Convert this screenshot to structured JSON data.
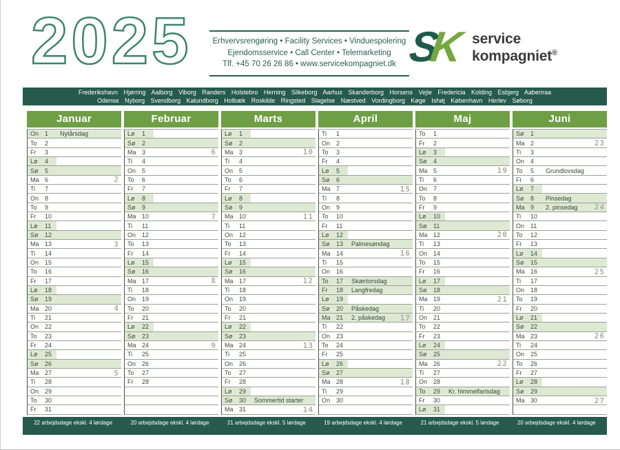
{
  "year": "2025",
  "services": {
    "line1": "Erhvervsrengøring • Facility Services • Vinduespolering",
    "line2": "Ejendomsservice • Call Center • Telemarketing",
    "line3": "Tlf. +45 70 26 26 86 • www.servicekompagniet.dk"
  },
  "logo": {
    "s": "S",
    "k": "K",
    "name1": "service",
    "name2": "kompagniet",
    "registered": "®"
  },
  "cities": {
    "line1": [
      "Frederikshavn",
      "Hjørring",
      "Aalborg",
      "Viborg",
      "Randers",
      "Holstebro",
      "Herning",
      "Silkeborg",
      "Aarhus",
      "Skanderborg",
      "Horsens",
      "Vejle",
      "Fredericia",
      "Kolding",
      "Esbjerg",
      "Aabenraa"
    ],
    "line2": [
      "Odense",
      "Nyborg",
      "Svendborg",
      "Kalundborg",
      "Holbæk",
      "Roskilde",
      "Ringsted",
      "Slagelse",
      "Næstved",
      "Vordingborg",
      "Køge",
      "Ishøj",
      "København",
      "Herlev",
      "Søborg"
    ]
  },
  "colors": {
    "dark_green": "#265b4c",
    "month_green": "#6f9f45",
    "highlight_green": "#dee9d3",
    "logo_dark": "#1e5b4a",
    "logo_light": "#76a83e",
    "year_outline": "#3c8468",
    "week_gray": "#a9aea4"
  },
  "months": [
    {
      "name": "Januar",
      "footer": "22 arbejdsdage ekskl. 4 lørdage",
      "days": [
        {
          "abbr": "On",
          "num": 1,
          "note": "Nytårsdag",
          "hl": "full"
        },
        {
          "abbr": "To",
          "num": 2
        },
        {
          "abbr": "Fr",
          "num": 3
        },
        {
          "abbr": "Lø",
          "num": 4,
          "hl": "left"
        },
        {
          "abbr": "Sø",
          "num": 5,
          "hl": "full"
        },
        {
          "abbr": "Ma",
          "num": 6,
          "wk": 2
        },
        {
          "abbr": "Ti",
          "num": 7
        },
        {
          "abbr": "On",
          "num": 8
        },
        {
          "abbr": "To",
          "num": 9
        },
        {
          "abbr": "Fr",
          "num": 10
        },
        {
          "abbr": "Lø",
          "num": 11,
          "hl": "left"
        },
        {
          "abbr": "Sø",
          "num": 12,
          "hl": "full"
        },
        {
          "abbr": "Ma",
          "num": 13,
          "wk": 3
        },
        {
          "abbr": "Ti",
          "num": 14
        },
        {
          "abbr": "On",
          "num": 15
        },
        {
          "abbr": "To",
          "num": 16
        },
        {
          "abbr": "Fr",
          "num": 17
        },
        {
          "abbr": "Lø",
          "num": 18,
          "hl": "left"
        },
        {
          "abbr": "Sø",
          "num": 19,
          "hl": "full"
        },
        {
          "abbr": "Ma",
          "num": 20,
          "wk": 4
        },
        {
          "abbr": "Ti",
          "num": 21
        },
        {
          "abbr": "On",
          "num": 22
        },
        {
          "abbr": "To",
          "num": 23
        },
        {
          "abbr": "Fr",
          "num": 24
        },
        {
          "abbr": "Lø",
          "num": 25,
          "hl": "left"
        },
        {
          "abbr": "Sø",
          "num": 26,
          "hl": "full"
        },
        {
          "abbr": "Ma",
          "num": 27,
          "wk": 5
        },
        {
          "abbr": "Ti",
          "num": 28
        },
        {
          "abbr": "On",
          "num": 29
        },
        {
          "abbr": "To",
          "num": 30
        },
        {
          "abbr": "Fr",
          "num": 31
        }
      ]
    },
    {
      "name": "Februar",
      "footer": "20 arbejdsdage ekskl. 4 lørdage",
      "days": [
        {
          "abbr": "Lø",
          "num": 1,
          "hl": "left"
        },
        {
          "abbr": "Sø",
          "num": 2,
          "hl": "full"
        },
        {
          "abbr": "Ma",
          "num": 3,
          "wk": 6
        },
        {
          "abbr": "Ti",
          "num": 4
        },
        {
          "abbr": "On",
          "num": 5
        },
        {
          "abbr": "To",
          "num": 6
        },
        {
          "abbr": "Fr",
          "num": 7
        },
        {
          "abbr": "Lø",
          "num": 8,
          "hl": "left"
        },
        {
          "abbr": "Sø",
          "num": 9,
          "hl": "full"
        },
        {
          "abbr": "Ma",
          "num": 10,
          "wk": 7
        },
        {
          "abbr": "Ti",
          "num": 11
        },
        {
          "abbr": "On",
          "num": 12
        },
        {
          "abbr": "To",
          "num": 13
        },
        {
          "abbr": "Fr",
          "num": 14
        },
        {
          "abbr": "Lø",
          "num": 15,
          "hl": "left"
        },
        {
          "abbr": "Sø",
          "num": 16,
          "hl": "full"
        },
        {
          "abbr": "Ma",
          "num": 17,
          "wk": 8
        },
        {
          "abbr": "Ti",
          "num": 18
        },
        {
          "abbr": "On",
          "num": 19
        },
        {
          "abbr": "To",
          "num": 20
        },
        {
          "abbr": "Fr",
          "num": 21
        },
        {
          "abbr": "Lø",
          "num": 22,
          "hl": "left"
        },
        {
          "abbr": "Sø",
          "num": 23,
          "hl": "full"
        },
        {
          "abbr": "Ma",
          "num": 24,
          "wk": 9
        },
        {
          "abbr": "Ti",
          "num": 25
        },
        {
          "abbr": "On",
          "num": 26
        },
        {
          "abbr": "To",
          "num": 27
        },
        {
          "abbr": "Fr",
          "num": 28
        },
        null,
        null,
        null
      ]
    },
    {
      "name": "Marts",
      "footer": "21 arbejdsdage ekskl. 5 lørdage",
      "days": [
        {
          "abbr": "Lø",
          "num": 1,
          "hl": "left"
        },
        {
          "abbr": "Sø",
          "num": 2,
          "hl": "full"
        },
        {
          "abbr": "Ma",
          "num": 3,
          "wk": 10
        },
        {
          "abbr": "Ti",
          "num": 4
        },
        {
          "abbr": "On",
          "num": 5
        },
        {
          "abbr": "To",
          "num": 6
        },
        {
          "abbr": "Fr",
          "num": 7
        },
        {
          "abbr": "Lø",
          "num": 8,
          "hl": "left"
        },
        {
          "abbr": "Sø",
          "num": 9,
          "hl": "full"
        },
        {
          "abbr": "Ma",
          "num": 10,
          "wk": 11
        },
        {
          "abbr": "Ti",
          "num": 11
        },
        {
          "abbr": "On",
          "num": 12
        },
        {
          "abbr": "To",
          "num": 13
        },
        {
          "abbr": "Fr",
          "num": 14
        },
        {
          "abbr": "Lø",
          "num": 15,
          "hl": "left"
        },
        {
          "abbr": "Sø",
          "num": 16,
          "hl": "full"
        },
        {
          "abbr": "Ma",
          "num": 17,
          "wk": 12
        },
        {
          "abbr": "Ti",
          "num": 18
        },
        {
          "abbr": "On",
          "num": 19
        },
        {
          "abbr": "To",
          "num": 20
        },
        {
          "abbr": "Fr",
          "num": 21
        },
        {
          "abbr": "Lø",
          "num": 22,
          "hl": "left"
        },
        {
          "abbr": "Sø",
          "num": 23,
          "hl": "full"
        },
        {
          "abbr": "Ma",
          "num": 24,
          "wk": 13
        },
        {
          "abbr": "Ti",
          "num": 25
        },
        {
          "abbr": "On",
          "num": 26
        },
        {
          "abbr": "To",
          "num": 27
        },
        {
          "abbr": "Fr",
          "num": 28
        },
        {
          "abbr": "Lø",
          "num": 29,
          "hl": "left"
        },
        {
          "abbr": "Sø",
          "num": 30,
          "note": "Sommertid starter",
          "hl": "full"
        },
        {
          "abbr": "Ma",
          "num": 31,
          "wk": 14
        }
      ]
    },
    {
      "name": "April",
      "footer": "19 arbejdsdage ekskl. 4 lørdage",
      "days": [
        {
          "abbr": "Ti",
          "num": 1
        },
        {
          "abbr": "On",
          "num": 2
        },
        {
          "abbr": "To",
          "num": 3
        },
        {
          "abbr": "Fr",
          "num": 4
        },
        {
          "abbr": "Lø",
          "num": 5,
          "hl": "left"
        },
        {
          "abbr": "Sø",
          "num": 6,
          "hl": "full"
        },
        {
          "abbr": "Ma",
          "num": 7,
          "wk": 15
        },
        {
          "abbr": "Ti",
          "num": 8
        },
        {
          "abbr": "On",
          "num": 9
        },
        {
          "abbr": "To",
          "num": 10
        },
        {
          "abbr": "Fr",
          "num": 11
        },
        {
          "abbr": "Lø",
          "num": 12,
          "hl": "left"
        },
        {
          "abbr": "Sø",
          "num": 13,
          "note": "Palmesøndag",
          "hl": "full"
        },
        {
          "abbr": "Ma",
          "num": 14,
          "wk": 16
        },
        {
          "abbr": "Ti",
          "num": 15
        },
        {
          "abbr": "On",
          "num": 16
        },
        {
          "abbr": "To",
          "num": 17,
          "note": "Skærtorsdag",
          "hl": "full"
        },
        {
          "abbr": "Fr",
          "num": 18,
          "note": "Langfredag",
          "hl": "full"
        },
        {
          "abbr": "Lø",
          "num": 19,
          "hl": "left"
        },
        {
          "abbr": "Sø",
          "num": 20,
          "note": "Påskedag",
          "hl": "full"
        },
        {
          "abbr": "Ma",
          "num": 21,
          "note": "2. påskedag",
          "wk": 17,
          "hl": "full"
        },
        {
          "abbr": "Ti",
          "num": 22
        },
        {
          "abbr": "On",
          "num": 23
        },
        {
          "abbr": "To",
          "num": 24
        },
        {
          "abbr": "Fr",
          "num": 25
        },
        {
          "abbr": "Lø",
          "num": 26,
          "hl": "left"
        },
        {
          "abbr": "Sø",
          "num": 27,
          "hl": "full"
        },
        {
          "abbr": "Ma",
          "num": 28,
          "wk": 18
        },
        {
          "abbr": "Ti",
          "num": 29
        },
        {
          "abbr": "On",
          "num": 30
        },
        null
      ]
    },
    {
      "name": "Maj",
      "footer": "21 arbejdsdage ekskl. 5 lørdage",
      "days": [
        {
          "abbr": "To",
          "num": 1
        },
        {
          "abbr": "Fr",
          "num": 2
        },
        {
          "abbr": "Lø",
          "num": 3,
          "hl": "left"
        },
        {
          "abbr": "Sø",
          "num": 4,
          "hl": "full"
        },
        {
          "abbr": "Ma",
          "num": 5,
          "wk": 19
        },
        {
          "abbr": "Ti",
          "num": 6
        },
        {
          "abbr": "On",
          "num": 7
        },
        {
          "abbr": "To",
          "num": 8
        },
        {
          "abbr": "Fr",
          "num": 9
        },
        {
          "abbr": "Lø",
          "num": 10,
          "hl": "left"
        },
        {
          "abbr": "Sø",
          "num": 11,
          "hl": "full"
        },
        {
          "abbr": "Ma",
          "num": 12,
          "wk": 20
        },
        {
          "abbr": "Ti",
          "num": 13
        },
        {
          "abbr": "On",
          "num": 14
        },
        {
          "abbr": "To",
          "num": 15
        },
        {
          "abbr": "Fr",
          "num": 16
        },
        {
          "abbr": "Lø",
          "num": 17,
          "hl": "left"
        },
        {
          "abbr": "Sø",
          "num": 18,
          "hl": "full"
        },
        {
          "abbr": "Ma",
          "num": 19,
          "wk": 21
        },
        {
          "abbr": "Ti",
          "num": 20
        },
        {
          "abbr": "On",
          "num": 21
        },
        {
          "abbr": "To",
          "num": 22
        },
        {
          "abbr": "Fr",
          "num": 23
        },
        {
          "abbr": "Lø",
          "num": 24,
          "hl": "left"
        },
        {
          "abbr": "Sø",
          "num": 25,
          "hl": "full"
        },
        {
          "abbr": "Ma",
          "num": 26,
          "wk": 22
        },
        {
          "abbr": "Ti",
          "num": 27
        },
        {
          "abbr": "On",
          "num": 28
        },
        {
          "abbr": "To",
          "num": 29,
          "note": "Kr. himmelfartsdag",
          "hl": "full"
        },
        {
          "abbr": "Fr",
          "num": 30
        },
        {
          "abbr": "Lø",
          "num": 31,
          "hl": "left"
        }
      ]
    },
    {
      "name": "Juni",
      "footer": "20 arbejdsdage ekskl. 4 lørdage",
      "days": [
        {
          "abbr": "Sø",
          "num": 1,
          "hl": "full"
        },
        {
          "abbr": "Ma",
          "num": 2,
          "wk": 23
        },
        {
          "abbr": "Ti",
          "num": 3
        },
        {
          "abbr": "On",
          "num": 4
        },
        {
          "abbr": "To",
          "num": 5,
          "note": "Grundlovsdag"
        },
        {
          "abbr": "Fr",
          "num": 6
        },
        {
          "abbr": "Lø",
          "num": 7,
          "hl": "left"
        },
        {
          "abbr": "Sø",
          "num": 8,
          "note": "Pinsedag",
          "hl": "full"
        },
        {
          "abbr": "Ma",
          "num": 9,
          "note": "2. pinsedag",
          "wk": 24,
          "hl": "full"
        },
        {
          "abbr": "Ti",
          "num": 10
        },
        {
          "abbr": "On",
          "num": 11
        },
        {
          "abbr": "To",
          "num": 12
        },
        {
          "abbr": "Fr",
          "num": 13
        },
        {
          "abbr": "Lø",
          "num": 14,
          "hl": "left"
        },
        {
          "abbr": "Sø",
          "num": 15,
          "hl": "full"
        },
        {
          "abbr": "Ma",
          "num": 16,
          "wk": 25
        },
        {
          "abbr": "Ti",
          "num": 17
        },
        {
          "abbr": "On",
          "num": 18
        },
        {
          "abbr": "To",
          "num": 19
        },
        {
          "abbr": "Fr",
          "num": 20
        },
        {
          "abbr": "Lø",
          "num": 21,
          "hl": "left"
        },
        {
          "abbr": "Sø",
          "num": 22,
          "hl": "full"
        },
        {
          "abbr": "Ma",
          "num": 23,
          "wk": 26
        },
        {
          "abbr": "Ti",
          "num": 24
        },
        {
          "abbr": "On",
          "num": 25
        },
        {
          "abbr": "To",
          "num": 26
        },
        {
          "abbr": "Fr",
          "num": 27
        },
        {
          "abbr": "Lø",
          "num": 28,
          "hl": "left"
        },
        {
          "abbr": "Sø",
          "num": 29,
          "hl": "full"
        },
        {
          "abbr": "Ma",
          "num": 30,
          "wk": 27
        },
        null
      ]
    }
  ]
}
